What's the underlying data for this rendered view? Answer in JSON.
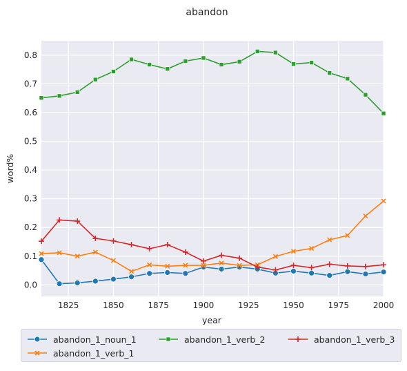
{
  "chart_data": {
    "type": "line",
    "title": "abandon",
    "xlabel": "year",
    "ylabel": "word%",
    "xlim": [
      1810,
      2000
    ],
    "ylim": [
      -0.04,
      0.85
    ],
    "xticks": [
      "1825",
      "1850",
      "1875",
      "1900",
      "1925",
      "1950",
      "1975",
      "2000"
    ],
    "yticks": [
      "0.0",
      "0.1",
      "0.2",
      "0.3",
      "0.4",
      "0.5",
      "0.6",
      "0.7",
      "0.8"
    ],
    "grid": true,
    "legend": "bottom",
    "x": [
      1810,
      1820,
      1830,
      1840,
      1850,
      1860,
      1870,
      1880,
      1890,
      1900,
      1910,
      1920,
      1930,
      1940,
      1950,
      1960,
      1970,
      1980,
      1990,
      2000
    ],
    "series": [
      {
        "name": "abandon_1_noun_1",
        "color": "#1f77b4",
        "marker": "circle",
        "values": [
          0.088,
          0.004,
          0.007,
          0.013,
          0.02,
          0.028,
          0.04,
          0.043,
          0.04,
          0.062,
          0.055,
          0.062,
          0.055,
          0.041,
          0.048,
          0.041,
          0.033,
          0.046,
          0.038,
          0.045
        ]
      },
      {
        "name": "abandon_1_verb_1",
        "color": "#ff7f0e",
        "marker": "x",
        "values": [
          0.109,
          0.112,
          0.1,
          0.114,
          0.085,
          0.047,
          0.07,
          0.065,
          0.068,
          0.068,
          0.076,
          0.068,
          0.07,
          0.099,
          0.117,
          0.127,
          0.157,
          0.172,
          0.24,
          0.292
        ]
      },
      {
        "name": "abandon_1_verb_2",
        "color": "#2ca02c",
        "marker": "square",
        "values": [
          0.651,
          0.658,
          0.671,
          0.715,
          0.743,
          0.785,
          0.767,
          0.752,
          0.779,
          0.79,
          0.767,
          0.777,
          0.813,
          0.809,
          0.769,
          0.774,
          0.738,
          0.718,
          0.662,
          0.597
        ]
      },
      {
        "name": "abandon_1_verb_3",
        "color": "#d62728",
        "marker": "plus",
        "values": [
          0.152,
          0.226,
          0.222,
          0.162,
          0.153,
          0.14,
          0.126,
          0.14,
          0.114,
          0.083,
          0.103,
          0.093,
          0.062,
          0.052,
          0.068,
          0.06,
          0.072,
          0.066,
          0.064,
          0.07
        ]
      }
    ]
  }
}
